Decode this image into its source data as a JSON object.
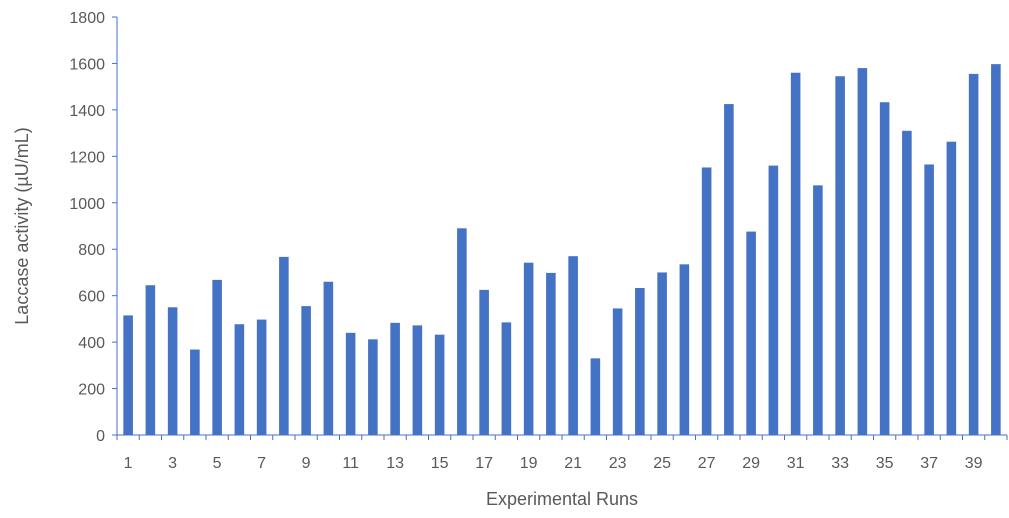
{
  "chart_data": {
    "type": "bar",
    "title": "",
    "xlabel": "Experimental Runs",
    "ylabel": "Laccase activity (µU/mL)",
    "ylim": [
      0,
      1800
    ],
    "yticks": [
      0,
      200,
      400,
      600,
      800,
      1000,
      1200,
      1400,
      1600,
      1800
    ],
    "categories": [
      "1",
      "2",
      "3",
      "4",
      "5",
      "6",
      "7",
      "8",
      "9",
      "10",
      "11",
      "12",
      "13",
      "14",
      "15",
      "16",
      "17",
      "18",
      "19",
      "20",
      "21",
      "22",
      "23",
      "24",
      "25",
      "26",
      "27",
      "28",
      "29",
      "30",
      "31",
      "32",
      "33",
      "34",
      "35",
      "36",
      "37",
      "38",
      "39",
      "40"
    ],
    "xtick_labels_shown": [
      "1",
      "3",
      "5",
      "7",
      "9",
      "11",
      "13",
      "15",
      "17",
      "19",
      "21",
      "23",
      "25",
      "27",
      "29",
      "31",
      "33",
      "35",
      "37",
      "39"
    ],
    "values": [
      515,
      645,
      550,
      368,
      668,
      477,
      497,
      767,
      555,
      660,
      440,
      412,
      483,
      472,
      432,
      890,
      625,
      485,
      742,
      698,
      770,
      330,
      545,
      633,
      700,
      735,
      1152,
      1425,
      876,
      1160,
      1560,
      1075,
      1545,
      1580,
      1433,
      1310,
      1165,
      1263,
      1555,
      1597
    ],
    "grid": false,
    "legend": "none",
    "colors": {
      "bar": "#4472C4",
      "axis": "#4472C4",
      "text": "#595959"
    }
  }
}
